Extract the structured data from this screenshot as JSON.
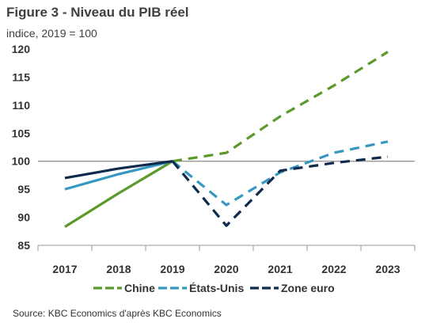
{
  "header": {
    "title": "Figure 3 - Niveau du PIB réel",
    "subtitle": "indice, 2019 = 100"
  },
  "footer": {
    "source": "Source: KBC Economics d'après KBC Economics"
  },
  "chart_data": {
    "type": "line",
    "title": "Figure 3 - Niveau du PIB réel",
    "subtitle": "indice, 2019 = 100",
    "x": [
      "2017",
      "2018",
      "2019",
      "2020",
      "2021",
      "2022",
      "2023"
    ],
    "ylim": [
      85,
      120
    ],
    "yticks": [
      85,
      90,
      95,
      100,
      105,
      110,
      115,
      120
    ],
    "reference_line": 100,
    "grid": false,
    "legend_position": "bottom",
    "forecast_from": "2019",
    "series": [
      {
        "name": "Chine",
        "color": "#5b9a2a",
        "values": [
          88.3,
          94.3,
          100,
          101.5,
          108,
          113.5,
          119.5
        ]
      },
      {
        "name": "États-Unis",
        "color": "#3797c0",
        "values": [
          95,
          97.7,
          100,
          92.2,
          98,
          101.5,
          103.5
        ]
      },
      {
        "name": "Zone euro",
        "color": "#0f2a4d",
        "values": [
          97,
          98.7,
          100,
          88.5,
          98.3,
          99.7,
          100.8
        ]
      }
    ]
  }
}
